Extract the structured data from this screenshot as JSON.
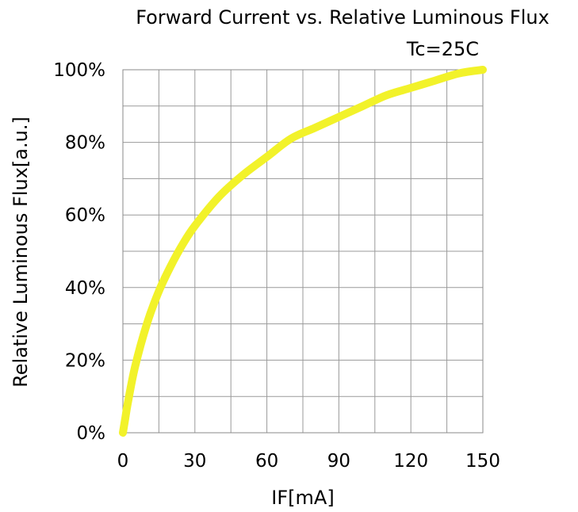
{
  "chart_data": {
    "type": "line",
    "title": "Forward Current vs. Relative Luminous Flux",
    "annotation": "Tc=25C",
    "xlabel": "IF[mA]",
    "ylabel": "Relative Luminous Flux[a.u.]",
    "xlim": [
      0,
      150
    ],
    "ylim": [
      0,
      100
    ],
    "x_ticks": [
      "0",
      "30",
      "60",
      "90",
      "120",
      "150"
    ],
    "x_tick_values": [
      0,
      30,
      60,
      90,
      120,
      150
    ],
    "y_ticks": [
      "0%",
      "20%",
      "40%",
      "60%",
      "80%",
      "100%"
    ],
    "y_tick_values": [
      0,
      20,
      40,
      60,
      80,
      100
    ],
    "grid": true,
    "x_grid_step": 15,
    "y_grid_step": 10,
    "series": [
      {
        "color": "#f2f22a",
        "x": [
          0,
          1,
          2,
          5,
          10,
          15,
          20,
          25,
          30,
          40,
          50,
          60,
          70,
          80,
          90,
          100,
          110,
          120,
          130,
          140,
          150
        ],
        "y": [
          0,
          4,
          8,
          18,
          30,
          39,
          46,
          52,
          57,
          65,
          71,
          76,
          81,
          84,
          87,
          90,
          93,
          95,
          97,
          99,
          100
        ]
      }
    ]
  }
}
